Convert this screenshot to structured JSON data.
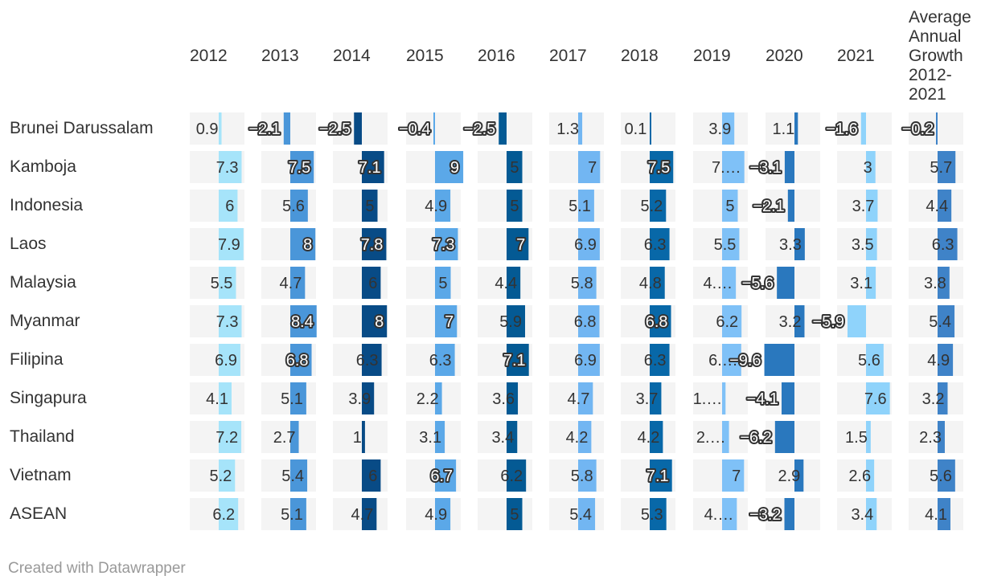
{
  "footer": "Created with Datawrapper",
  "chart_data": {
    "type": "table",
    "title": "",
    "columns": [
      "2012",
      "2013",
      "2014",
      "2015",
      "2016",
      "2017",
      "2018",
      "2019",
      "2020",
      "2021",
      "Average Annual Growth 2012-2021"
    ],
    "rows": [
      {
        "name": "Brunei Darussalam",
        "values": [
          0.9,
          -2.1,
          -2.5,
          -0.4,
          -2.5,
          1.3,
          0.1,
          3.9,
          1.1,
          -1.6,
          -0.2
        ]
      },
      {
        "name": "Kamboja",
        "values": [
          7.3,
          7.5,
          7.1,
          9,
          5,
          7,
          7.5,
          7.1,
          -3.1,
          3,
          5.7
        ]
      },
      {
        "name": "Indonesia",
        "values": [
          6,
          5.6,
          5,
          4.9,
          5,
          5.1,
          5.2,
          5,
          -2.1,
          3.7,
          4.4
        ]
      },
      {
        "name": "Laos",
        "values": [
          7.9,
          8,
          7.8,
          7.3,
          7,
          6.9,
          6.3,
          5.5,
          3.3,
          3.5,
          6.3
        ]
      },
      {
        "name": "Malaysia",
        "values": [
          5.5,
          4.7,
          6,
          5,
          4.4,
          5.8,
          4.8,
          4.4,
          -5.6,
          3.1,
          3.8
        ]
      },
      {
        "name": "Myanmar",
        "values": [
          7.3,
          8.4,
          8,
          7,
          5.9,
          6.8,
          6.8,
          6.2,
          3.2,
          -5.9,
          5.4
        ]
      },
      {
        "name": "Filipina",
        "values": [
          6.9,
          6.8,
          6.3,
          6.3,
          7.1,
          6.9,
          6.3,
          6.1,
          -9.6,
          5.6,
          4.9
        ]
      },
      {
        "name": "Singapura",
        "values": [
          4.1,
          5.1,
          3.9,
          2.2,
          3.6,
          4.7,
          3.7,
          1.1,
          -4.1,
          7.6,
          3.2
        ]
      },
      {
        "name": "Thailand",
        "values": [
          7.2,
          2.7,
          1,
          3.1,
          3.4,
          4.2,
          4.2,
          2.2,
          -6.2,
          1.5,
          2.3
        ]
      },
      {
        "name": "Vietnam",
        "values": [
          5.2,
          5.4,
          6,
          6.7,
          6.2,
          5.8,
          7.1,
          7,
          2.9,
          2.6,
          5.6
        ]
      },
      {
        "name": "ASEAN",
        "values": [
          6.2,
          5.1,
          4.7,
          4.9,
          5,
          5.4,
          5.3,
          4.7,
          -3.2,
          3.4,
          4.1
        ]
      }
    ],
    "value_labels": [
      [
        "0.9",
        "−2.1",
        "−2.5",
        "−0.4",
        "−2.5",
        "1.3",
        "0.1",
        "3.9",
        "1.1",
        "−1.6",
        "−0.2"
      ],
      [
        "7.3",
        "7.5",
        "7.1",
        "9",
        "5",
        "7",
        "7.5",
        "7.…",
        "−3.1",
        "3",
        "5.7"
      ],
      [
        "6",
        "5.6",
        "5",
        "4.9",
        "5",
        "5.1",
        "5.2",
        "5",
        "−2.1",
        "3.7",
        "4.4"
      ],
      [
        "7.9",
        "8",
        "7.8",
        "7.3",
        "7",
        "6.9",
        "6.3",
        "5.5",
        "3.3",
        "3.5",
        "6.3"
      ],
      [
        "5.5",
        "4.7",
        "6",
        "5",
        "4.4",
        "5.8",
        "4.8",
        "4.…",
        "−5.6",
        "3.1",
        "3.8"
      ],
      [
        "7.3",
        "8.4",
        "8",
        "7",
        "5.9",
        "6.8",
        "6.8",
        "6.2",
        "3.2",
        "−5.9",
        "5.4"
      ],
      [
        "6.9",
        "6.8",
        "6.3",
        "6.3",
        "7.1",
        "6.9",
        "6.3",
        "6.…",
        "−9.6",
        "5.6",
        "4.9"
      ],
      [
        "4.1",
        "5.1",
        "3.9",
        "2.2",
        "3.6",
        "4.7",
        "3.7",
        "1.…",
        "−4.1",
        "7.6",
        "3.2"
      ],
      [
        "7.2",
        "2.7",
        "1",
        "3.1",
        "3.4",
        "4.2",
        "4.2",
        "2.…",
        "−6.2",
        "1.5",
        "2.3"
      ],
      [
        "5.2",
        "5.4",
        "6",
        "6.7",
        "6.2",
        "5.8",
        "7.1",
        "7",
        "2.9",
        "2.6",
        "5.6"
      ],
      [
        "6.2",
        "5.1",
        "4.7",
        "4.9",
        "5",
        "5.4",
        "5.3",
        "4.…",
        "−3.2",
        "3.4",
        "4.1"
      ]
    ],
    "column_colors": [
      "#a6e4fa",
      "#4a96d9",
      "#084b86",
      "#5ba8e8",
      "#045a94",
      "#72b6f2",
      "#0868a8",
      "#7fc1f7",
      "#2a78be",
      "#8fd3fb",
      "#3f83c8"
    ],
    "column_range": [
      -10,
      10
    ],
    "background_color": "#f4f4f4"
  }
}
